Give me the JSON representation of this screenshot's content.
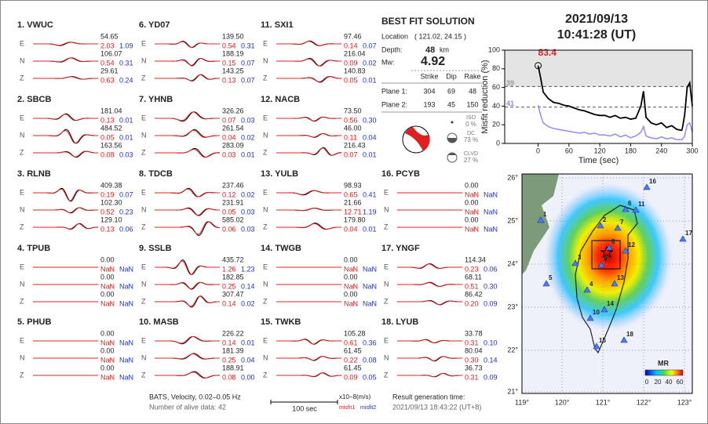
{
  "header": {
    "date": "2021/09/13",
    "time": "10:41:28  (UT)"
  },
  "components": [
    "E",
    "N",
    "Z"
  ],
  "stations": [
    {
      "title": "1.  VWUC",
      "rows": [
        [
          "54.65",
          "2.03",
          "1.09"
        ],
        [
          "106.07",
          "0.54",
          "0.31"
        ],
        [
          "29.61",
          "0.63",
          "0.24"
        ]
      ]
    },
    {
      "title": "2.  SBCB",
      "rows": [
        [
          "181.04",
          "0.13",
          "0.01"
        ],
        [
          "484.52",
          "0.05",
          "0.01"
        ],
        [
          "163.56",
          "0.08",
          "0.03"
        ]
      ]
    },
    {
      "title": "3.  RLNB",
      "rows": [
        [
          "409.38",
          "0.19",
          "0.07"
        ],
        [
          "102.30",
          "0.52",
          "0.23"
        ],
        [
          "129.10",
          "0.13",
          "0.06"
        ]
      ]
    },
    {
      "title": "4.  TPUB",
      "rows": [
        [
          "0.00",
          "NaN",
          "NaN"
        ],
        [
          "0.00",
          "NaN",
          "NaN"
        ],
        [
          "0.00",
          "NaN",
          "NaN"
        ]
      ]
    },
    {
      "title": "5.  PHUB",
      "rows": [
        [
          "0.00",
          "NaN",
          "NaN"
        ],
        [
          "0.00",
          "NaN",
          "NaN"
        ],
        [
          "0.00",
          "NaN",
          "NaN"
        ]
      ]
    },
    {
      "title": "6.  YD07",
      "rows": [
        [
          "139.50",
          "0.54",
          "0.31"
        ],
        [
          "188.19",
          "0.15",
          "0.07"
        ],
        [
          "143.25",
          "0.13",
          "0.07"
        ]
      ]
    },
    {
      "title": "7.  YHNB",
      "rows": [
        [
          "326.26",
          "0.07",
          "0.03"
        ],
        [
          "261.54",
          "0.04",
          "0.02"
        ],
        [
          "283.09",
          "0.03",
          "0.01"
        ]
      ]
    },
    {
      "title": "8.  TDCB",
      "rows": [
        [
          "237.46",
          "0.12",
          "0.02"
        ],
        [
          "231.91",
          "0.05",
          "0.03"
        ],
        [
          "585.02",
          "0.06",
          "0.03"
        ]
      ]
    },
    {
      "title": "9.  SSLB",
      "rows": [
        [
          "435.72",
          "1.26",
          "1.23"
        ],
        [
          "182.85",
          "0.25",
          "0.14"
        ],
        [
          "307.47",
          "0.14",
          "0.02"
        ]
      ]
    },
    {
      "title": "10.  MASB",
      "rows": [
        [
          "226.22",
          "0.14",
          "0.01"
        ],
        [
          "181.39",
          "0.25",
          "0.04"
        ],
        [
          "188.91",
          "0.08",
          "0.00"
        ]
      ]
    },
    {
      "title": "11.  SXI1",
      "rows": [
        [
          "97.46",
          "0.14",
          "0.07"
        ],
        [
          "216.04",
          "0.09",
          "0.02"
        ],
        [
          "140.83",
          "0.05",
          "0.01"
        ]
      ]
    },
    {
      "title": "12.  NACB",
      "rows": [
        [
          "73.50",
          "0.56",
          "0.30"
        ],
        [
          "46.00",
          "0.11",
          "0.04"
        ],
        [
          "216.43",
          "0.07",
          "0.01"
        ]
      ]
    },
    {
      "title": "13.  YULB",
      "rows": [
        [
          "98.93",
          "0.65",
          "0.41"
        ],
        [
          "21.66",
          "12.71",
          "1.19"
        ],
        [
          "179.80",
          "0.04",
          "0.01"
        ]
      ]
    },
    {
      "title": "14.  TWGB",
      "rows": [
        [
          "0.00",
          "NaN",
          "NaN"
        ],
        [
          "0.00",
          "NaN",
          "NaN"
        ],
        [
          "0.00",
          "NaN",
          "NaN"
        ]
      ]
    },
    {
      "title": "15.  TWKB",
      "rows": [
        [
          "105.28",
          "0.61",
          "0.36"
        ],
        [
          "61.45",
          "0.22",
          "0.08"
        ],
        [
          "61.45",
          "0.09",
          "0.05"
        ]
      ]
    },
    {
      "title": "16.  PCYB",
      "rows": [
        [
          "0.00",
          "NaN",
          "NaN"
        ],
        [
          "0.00",
          "NaN",
          "NaN"
        ],
        [
          "0.00",
          "NaN",
          "NaN"
        ]
      ]
    },
    {
      "title": "17.  YNGF",
      "rows": [
        [
          "114.34",
          "0.23",
          "0.06"
        ],
        [
          "68.11",
          "0.51",
          "0.30"
        ],
        [
          "86.42",
          "0.20",
          "0.09"
        ]
      ]
    },
    {
      "title": "18.  LYUB",
      "rows": [
        [
          "33.78",
          "0.31",
          "0.10"
        ],
        [
          "80.04",
          "0.30",
          "0.14"
        ],
        [
          "36.73",
          "0.31",
          "0.09"
        ]
      ]
    }
  ],
  "solution": {
    "title": "BEST FIT SOLUTION",
    "location_label": "Location",
    "location": "( 121.02, 24.15 )",
    "depth_label": "Depth:",
    "depth": "48",
    "depth_unit": "km",
    "mw_label": "Mw:",
    "mw": "4.92",
    "table": {
      "header": [
        "Strike",
        "Dip",
        "Rake"
      ],
      "rows": [
        {
          "label": "Plane 1:",
          "values": [
            "304",
            "69",
            "48"
          ]
        },
        {
          "label": "Plane 2:",
          "values": [
            "193",
            "45",
            "150"
          ]
        }
      ]
    },
    "components": [
      {
        "name": "ISO",
        "percent": "0 %"
      },
      {
        "name": "DC",
        "percent": "73 %"
      },
      {
        "name": "CLVD",
        "percent": "27 %"
      }
    ]
  },
  "footer": {
    "filter": "BATS, Velocity, 0.02–0.05 Hz",
    "alive": "Number of alive data: 42",
    "scale": "100 sec",
    "units": "x10−8(m/s)",
    "misfit1": "misfit1",
    "misfit2": "misfit2",
    "gen_label": "Result generation time:",
    "gen_time": "2021/09/13 18:43:22 (UT+8)"
  },
  "map": {
    "lat_ticks": [
      "26°",
      "25°",
      "24°",
      "23°",
      "22°",
      "21°"
    ],
    "lon_ticks": [
      "119°",
      "120°",
      "121°",
      "122°",
      "123°"
    ],
    "stations": [
      "1",
      "2",
      "3",
      "4",
      "5",
      "6",
      "7",
      "8",
      "9",
      "10",
      "11",
      "12",
      "13",
      "14",
      "15",
      "16",
      "17",
      "18"
    ],
    "colorbar_title": "MR",
    "colorbar_ticks": [
      "0",
      "20",
      "40",
      "60"
    ]
  },
  "chart_data": {
    "type": "line",
    "ylabel": "Misfit reduction (%)",
    "xlabel": "Time (sec)",
    "x": [
      0,
      5,
      10,
      20,
      30,
      40,
      50,
      60,
      70,
      80,
      90,
      100,
      110,
      120,
      130,
      140,
      150,
      160,
      170,
      180,
      190,
      200,
      205,
      210,
      220,
      230,
      240,
      250,
      260,
      270,
      280,
      285,
      290,
      295,
      300
    ],
    "series": [
      {
        "color": "#000000",
        "values": [
          83.4,
          70,
          55,
          48,
          44,
          43,
          41,
          40,
          38,
          36,
          35,
          33,
          31,
          30,
          30,
          28,
          30,
          27,
          28,
          26,
          27,
          40,
          56,
          28,
          22,
          20,
          22,
          17,
          19,
          15,
          14,
          30,
          60,
          65,
          40
        ]
      },
      {
        "color": "#ffffff",
        "values": [
          60,
          45,
          35,
          30,
          28,
          27,
          25,
          24,
          24,
          22,
          23,
          21,
          22,
          21,
          20,
          19,
          21,
          18,
          19,
          17,
          18,
          25,
          35,
          17,
          14,
          13,
          15,
          12,
          13,
          11,
          10,
          20,
          35,
          38,
          25
        ]
      },
      {
        "color": "#8c8cff",
        "values": [
          41,
          30,
          22,
          18,
          16,
          15,
          14,
          13,
          12,
          11,
          12,
          10,
          11,
          9,
          9,
          8,
          10,
          7,
          9,
          6,
          8,
          12,
          18,
          8,
          6,
          5,
          7,
          5,
          6,
          4,
          4,
          8,
          20,
          22,
          12
        ]
      }
    ],
    "ref_lines": [
      61,
      39
    ],
    "annotations": [
      {
        "text": "83.4",
        "color": "#e02020"
      },
      {
        "text": "39",
        "color": "#999999"
      },
      {
        "text": "41",
        "color": "#8c8cff"
      }
    ],
    "xlim": [
      -65,
      300
    ],
    "ylim": [
      0,
      100
    ],
    "xticks": [
      0,
      60,
      120,
      180,
      240,
      300
    ],
    "yticks": [
      0,
      20,
      40,
      60,
      80,
      100
    ]
  }
}
